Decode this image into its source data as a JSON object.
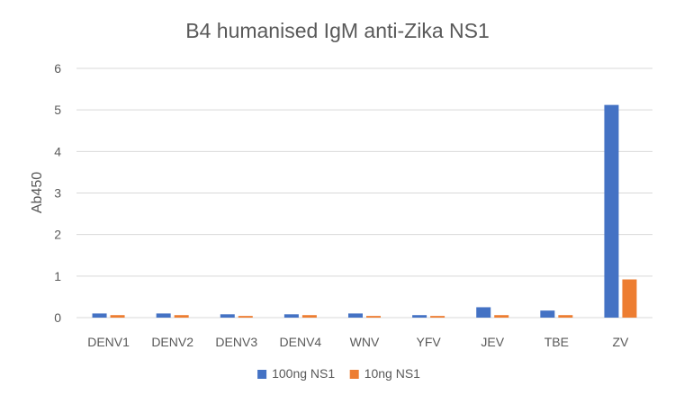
{
  "chart_data": {
    "type": "bar",
    "title": "B4 humanised IgM anti-Zika NS1",
    "xlabel": "",
    "ylabel": "Ab450",
    "categories": [
      "DENV1",
      "DENV2",
      "DENV3",
      "DENV4",
      "WNV",
      "YFV",
      "JEV",
      "TBE",
      "ZV"
    ],
    "series": [
      {
        "name": "100ng NS1",
        "color": "#4472C4",
        "values": [
          0.1,
          0.1,
          0.08,
          0.08,
          0.1,
          0.06,
          0.25,
          0.17,
          5.12
        ]
      },
      {
        "name": "10ng NS1",
        "color": "#ED7D31",
        "values": [
          0.06,
          0.06,
          0.04,
          0.06,
          0.04,
          0.04,
          0.06,
          0.06,
          0.92
        ]
      }
    ],
    "ylim": [
      0,
      6
    ],
    "yticks": [
      0,
      1,
      2,
      3,
      4,
      5,
      6
    ],
    "grid": true,
    "legend_position": "bottom",
    "gridline_color": "#D9D9D9",
    "axis_color": "#D9D9D9"
  }
}
